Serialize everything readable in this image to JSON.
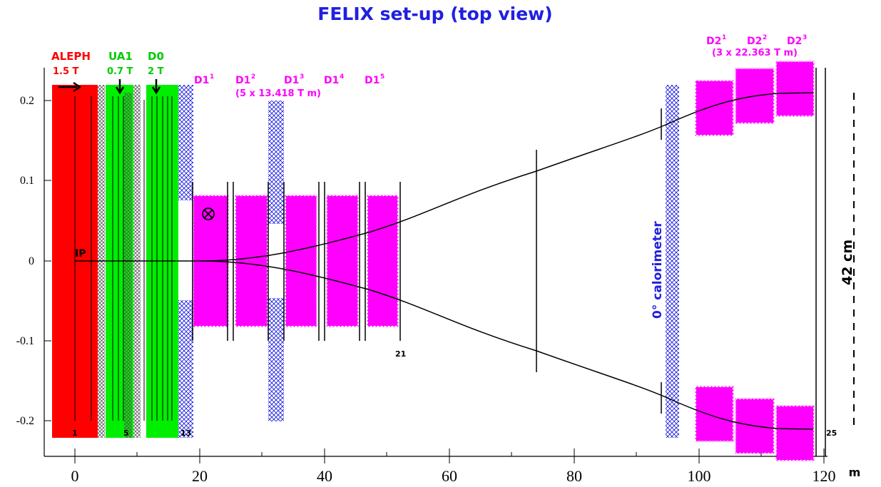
{
  "title": "FELIX   set-up      (top view)",
  "colors": {
    "aleph": "#ff0000",
    "ua1_d0": "#00ee00",
    "dipole": "#ff00ff",
    "hatch": "#2020e0",
    "title": "#2020e0"
  },
  "experiments": {
    "aleph": {
      "name": "ALEPH",
      "field": "1.5 T"
    },
    "ua1": {
      "name": "UA1",
      "field": "0.7 T"
    },
    "d0": {
      "name": "D0",
      "field": "2 T"
    }
  },
  "d1": {
    "labels": [
      "D1",
      "D1",
      "D1",
      "D1",
      "D1"
    ],
    "indices": [
      "1",
      "2",
      "3",
      "4",
      "5"
    ],
    "spec": "(5 x 13.418 T m)"
  },
  "d2": {
    "labels": [
      "D2",
      "D2",
      "D2"
    ],
    "indices": [
      "1",
      "2",
      "3"
    ],
    "spec": "(3 x 22.363 T m)"
  },
  "ip_label": "IP",
  "calorimeter_label": "0° calorimeter",
  "aperture_label": "42 cm",
  "markers": [
    "1",
    "5",
    "13",
    "21",
    "25"
  ],
  "x_axis": {
    "ticks": [
      "0",
      "20",
      "40",
      "60",
      "80",
      "100",
      "120"
    ],
    "unit": "m",
    "range": [
      0,
      120
    ]
  },
  "y_axis": {
    "ticks": [
      "0.2",
      "0.1",
      "0",
      "-0.1",
      "-0.2"
    ],
    "range": [
      -0.22,
      0.22
    ]
  }
}
